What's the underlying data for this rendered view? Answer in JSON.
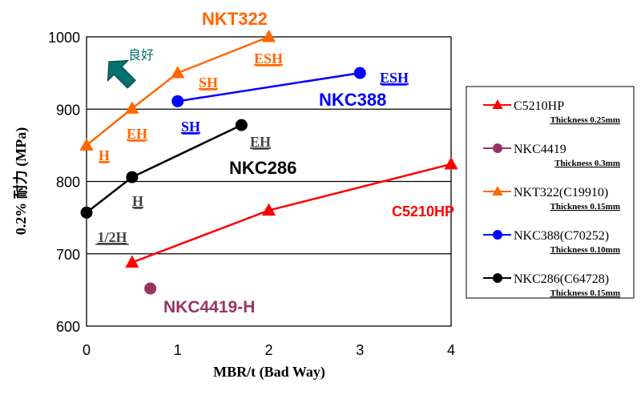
{
  "chart_data": {
    "type": "line",
    "title": "",
    "xlabel": "MBR/t (Bad Way)",
    "ylabel": "0.2% 耐力 (MPa)",
    "xlim": [
      0,
      4
    ],
    "ylim": [
      600,
      1000
    ],
    "x_ticks": [
      "0",
      "1",
      "2",
      "3",
      "4"
    ],
    "y_ticks": [
      "600",
      "700",
      "800",
      "900",
      "1000"
    ],
    "grid": "horizontal",
    "legend_position": "right",
    "series": [
      {
        "name": "C5210HP",
        "color": "#ff0000",
        "marker": "triangle",
        "thickness": "Thickness 0.25mm",
        "label": "C5210HP",
        "points": [
          [
            0.5,
            688
          ],
          [
            2.0,
            760
          ],
          [
            4.0,
            824
          ]
        ],
        "point_labels": []
      },
      {
        "name": "NKC4419",
        "color": "#993366",
        "marker": "circle",
        "thickness": "Thickness 0.3mm",
        "label": "NKC4419-H",
        "points": [
          [
            0.7,
            652
          ]
        ],
        "point_labels": []
      },
      {
        "name": "NKT322(C19910)",
        "color": "#ff6600",
        "marker": "triangle",
        "thickness": "Thickness 0.15mm",
        "label": "NKT322",
        "points": [
          [
            0.0,
            850
          ],
          [
            0.5,
            901
          ],
          [
            1.0,
            950
          ],
          [
            2.0,
            1000
          ]
        ],
        "point_labels": [
          "H",
          "EH",
          "SH",
          "ESH"
        ]
      },
      {
        "name": "NKC388(C70252)",
        "color": "#0000ff",
        "marker": "circle",
        "thickness": "Thickness 0.10mm",
        "label": "NKC388",
        "points": [
          [
            1.0,
            911
          ],
          [
            3.0,
            950
          ]
        ],
        "point_labels": [
          "SH",
          "ESH"
        ]
      },
      {
        "name": "NKC286(C64728)",
        "color": "#000000",
        "marker": "circle",
        "thickness": "Thickness 0.15mm",
        "label": "NKC286",
        "points": [
          [
            0.0,
            757
          ],
          [
            0.5,
            806
          ],
          [
            1.7,
            878
          ]
        ],
        "point_labels": [
          "1/2H",
          "H",
          "EH"
        ]
      }
    ],
    "annotations": {
      "good_direction": "良好",
      "arrow_color": "#007070"
    }
  }
}
